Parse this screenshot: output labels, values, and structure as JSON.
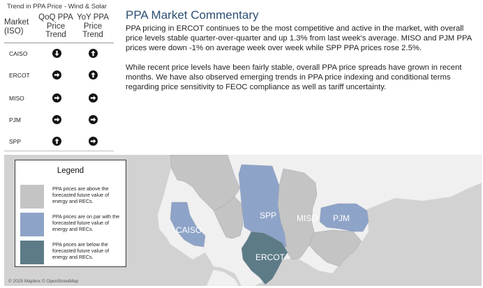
{
  "trend_table": {
    "title": "Trend in PPA Price - Wind & Solar",
    "headers": {
      "market": "Market (ISO)",
      "qoq": "QoQ PPA Price Trend",
      "yoy": "YoY PPA Price Trend"
    },
    "rows": [
      {
        "market": "CAISO",
        "qoq": "down",
        "yoy": "up"
      },
      {
        "market": "ERCOT",
        "qoq": "right",
        "yoy": "up"
      },
      {
        "market": "MISO",
        "qoq": "right",
        "yoy": "right"
      },
      {
        "market": "PJM",
        "qoq": "right",
        "yoy": "right"
      },
      {
        "market": "SPP",
        "qoq": "up",
        "yoy": "right"
      }
    ]
  },
  "commentary": {
    "title": "PPA Market Commentary",
    "paragraph_1": "PPA pricing in ERCOT continues to be the most competitive and active in the market, with overall price levels stable quarter-over-quarter and up 1.3% from last week's average. MISO and PJM PPA prices were down -1% on average week over week while SPP PPA prices rose 2.5%.",
    "paragraph_2": "While recent price levels have been fairly stable, overall PPA price spreads have grown in recent months. We have also observed emerging trends in PPA price indexing and conditional terms regarding price sensitivity to FEOC compliance as well as tariff uncertainty."
  },
  "legend": {
    "title": "Legend",
    "items": [
      {
        "color": "#c4c4c4",
        "text": "PPA prices are above the forecasted future value of energy and RECs."
      },
      {
        "color": "#8ea3c8",
        "text": "PPA prices are on par with the forecasted future value of energy and RECs."
      },
      {
        "color": "#5d7b87",
        "text": "PPA prices are below the forecasted future value of energy and RECs."
      }
    ]
  },
  "map": {
    "labels": {
      "caiso": "CAISO",
      "spp": "SPP",
      "miso": "MISO",
      "pjm": "PJM",
      "ercot": "ERCOT"
    },
    "colors": {
      "background": "#d2d2d2",
      "land": "#f0f0f0",
      "above": "#c4c4c4",
      "on_par": "#8ea3c8",
      "below": "#5d7b87"
    },
    "attribution": "© 2025 Mapbox © OpenStreetMap"
  }
}
